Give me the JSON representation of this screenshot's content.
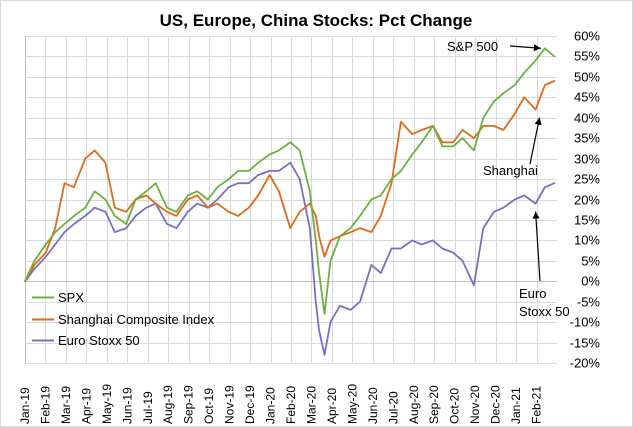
{
  "chart_data": {
    "type": "line",
    "title": "US, Europe, China Stocks: Pct Change",
    "xlabel": "",
    "ylabel": "",
    "ylim": [
      -0.2,
      0.6
    ],
    "y_ticks": [
      -0.2,
      -0.15,
      -0.1,
      -0.05,
      0.0,
      0.05,
      0.1,
      0.15,
      0.2,
      0.25,
      0.3,
      0.35,
      0.4,
      0.45,
      0.5,
      0.55,
      0.6
    ],
    "y_tick_labels": [
      "-20%",
      "-15%",
      "-10%",
      "-5%",
      "0%",
      "5%",
      "10%",
      "15%",
      "20%",
      "25%",
      "30%",
      "35%",
      "40%",
      "45%",
      "50%",
      "55%",
      "60%"
    ],
    "x_range": [
      "2019-01-01",
      "2021-03-05"
    ],
    "x_tick_labels": [
      "Jan-19",
      "Feb-19",
      "Mar-19",
      "Apr-19",
      "May-19",
      "Jun-19",
      "Jul-19",
      "Aug-19",
      "Sep-19",
      "Oct-19",
      "Nov-19",
      "Dec-19",
      "Jan-20",
      "Feb-20",
      "Mar-20",
      "Apr-20",
      "May-20",
      "Jun-20",
      "Jul-20",
      "Aug-20",
      "Sep-20",
      "Oct-20",
      "Nov-20",
      "Dec-20",
      "Jan-21",
      "Feb-21"
    ],
    "grid": true,
    "legend_position": "bottom-left",
    "x": [
      "2019-01-01",
      "2019-01-15",
      "2019-02-01",
      "2019-02-15",
      "2019-03-01",
      "2019-03-15",
      "2019-04-01",
      "2019-04-15",
      "2019-05-01",
      "2019-05-15",
      "2019-06-01",
      "2019-06-15",
      "2019-07-01",
      "2019-07-15",
      "2019-08-01",
      "2019-08-15",
      "2019-09-01",
      "2019-09-15",
      "2019-10-01",
      "2019-10-15",
      "2019-11-01",
      "2019-11-15",
      "2019-12-01",
      "2019-12-15",
      "2020-01-01",
      "2020-01-15",
      "2020-02-01",
      "2020-02-15",
      "2020-03-01",
      "2020-03-10",
      "2020-03-15",
      "2020-03-23",
      "2020-04-01",
      "2020-04-15",
      "2020-05-01",
      "2020-05-15",
      "2020-06-01",
      "2020-06-15",
      "2020-07-01",
      "2020-07-15",
      "2020-08-01",
      "2020-08-15",
      "2020-09-01",
      "2020-09-15",
      "2020-10-01",
      "2020-10-15",
      "2020-11-01",
      "2020-11-15",
      "2020-12-01",
      "2020-12-15",
      "2021-01-01",
      "2021-01-15",
      "2021-02-01",
      "2021-02-15",
      "2021-03-01"
    ],
    "series": [
      {
        "name": "SPX",
        "color": "#6ab23e",
        "values": [
          0.0,
          0.05,
          0.09,
          0.12,
          0.14,
          0.16,
          0.18,
          0.22,
          0.2,
          0.16,
          0.14,
          0.2,
          0.22,
          0.24,
          0.18,
          0.17,
          0.21,
          0.22,
          0.2,
          0.23,
          0.25,
          0.27,
          0.27,
          0.29,
          0.31,
          0.32,
          0.34,
          0.32,
          0.22,
          0.1,
          0.02,
          -0.08,
          0.05,
          0.11,
          0.13,
          0.16,
          0.2,
          0.21,
          0.25,
          0.27,
          0.31,
          0.34,
          0.38,
          0.33,
          0.33,
          0.35,
          0.32,
          0.4,
          0.44,
          0.46,
          0.48,
          0.51,
          0.54,
          0.57,
          0.55
        ]
      },
      {
        "name": "Shanghai Composite Index",
        "color": "#e06a1b",
        "values": [
          0.0,
          0.04,
          0.07,
          0.13,
          0.24,
          0.23,
          0.3,
          0.32,
          0.29,
          0.18,
          0.17,
          0.2,
          0.21,
          0.19,
          0.17,
          0.16,
          0.2,
          0.21,
          0.18,
          0.19,
          0.17,
          0.16,
          0.18,
          0.21,
          0.26,
          0.22,
          0.13,
          0.17,
          0.19,
          0.16,
          0.11,
          0.06,
          0.1,
          0.11,
          0.12,
          0.13,
          0.12,
          0.16,
          0.24,
          0.39,
          0.36,
          0.37,
          0.38,
          0.34,
          0.34,
          0.37,
          0.35,
          0.38,
          0.38,
          0.37,
          0.41,
          0.45,
          0.42,
          0.48,
          0.49
        ]
      },
      {
        "name": "Euro Stoxx 50",
        "color": "#7a6ec4",
        "values": [
          0.0,
          0.03,
          0.06,
          0.09,
          0.12,
          0.14,
          0.16,
          0.18,
          0.17,
          0.12,
          0.13,
          0.16,
          0.18,
          0.19,
          0.14,
          0.13,
          0.17,
          0.19,
          0.18,
          0.2,
          0.23,
          0.24,
          0.24,
          0.26,
          0.27,
          0.27,
          0.29,
          0.25,
          0.13,
          -0.05,
          -0.12,
          -0.18,
          -0.1,
          -0.06,
          -0.07,
          -0.05,
          0.04,
          0.02,
          0.08,
          0.08,
          0.1,
          0.09,
          0.1,
          0.08,
          0.07,
          0.05,
          -0.01,
          0.13,
          0.17,
          0.18,
          0.2,
          0.21,
          0.19,
          0.23,
          0.24
        ]
      }
    ],
    "annotations": [
      {
        "text": "S&P 500",
        "series": "SPX",
        "at": "2021-02-15"
      },
      {
        "text": "Shanghai",
        "series": "Shanghai Composite Index",
        "at": "2021-02-01"
      },
      {
        "text": "Euro",
        "series": "Euro Stoxx 50",
        "at": "2021-02-01"
      },
      {
        "text": "Stoxx 50",
        "series": "Euro Stoxx 50",
        "at": "2021-02-01"
      }
    ]
  }
}
